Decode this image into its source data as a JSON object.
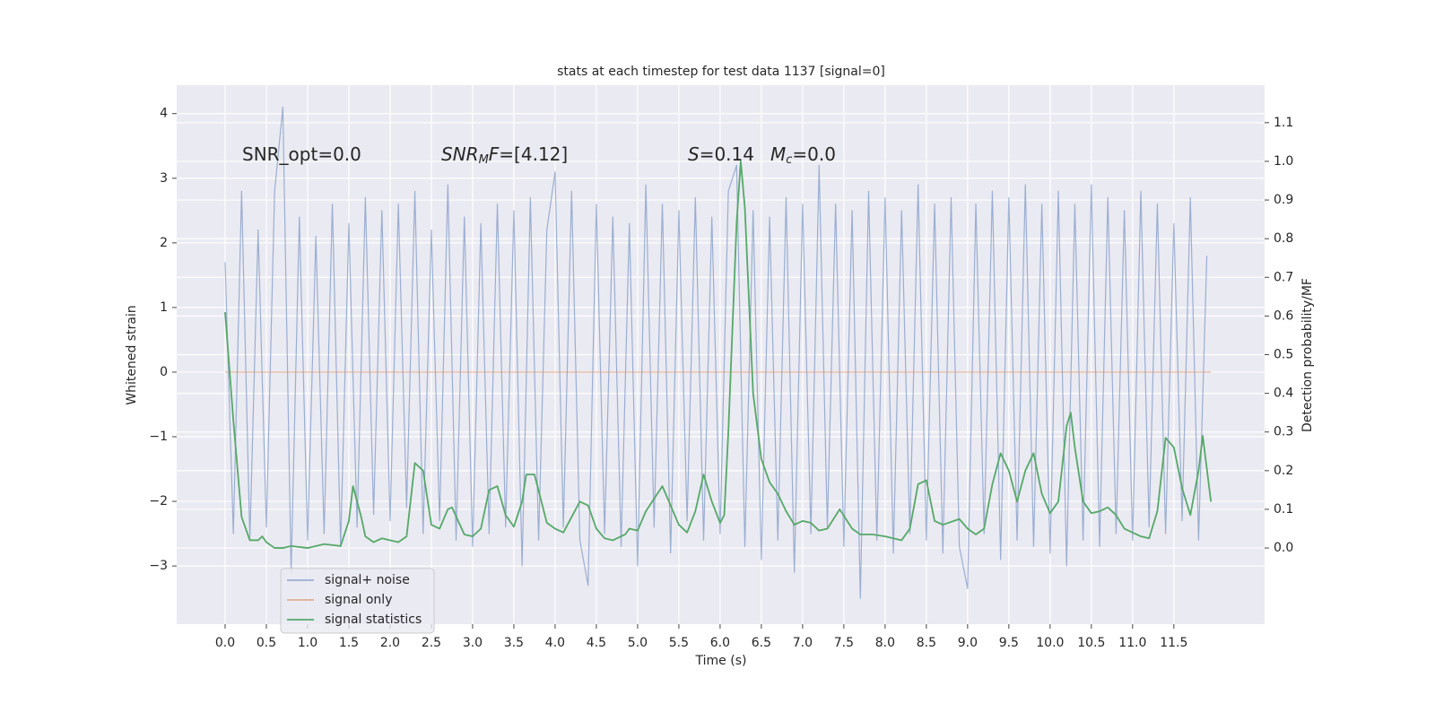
{
  "chart_data": {
    "type": "line",
    "title": "stats at each timestep for test data 1137 [signal=0]",
    "xlabel": "Time (s)",
    "ylabel": "Whitened strain",
    "y2label": "Detection probability/MF",
    "xlim": [
      -0.587,
      12.6
    ],
    "ylim": [
      -3.9,
      4.44
    ],
    "y2lim": [
      -0.197,
      1.197
    ],
    "xticks": [
      {
        "value": 0,
        "label": "0.0"
      },
      0.5,
      {
        "value": 1,
        "label": "1.0"
      },
      1.5,
      {
        "value": 2,
        "label": "2.0"
      },
      2.5,
      {
        "value": 3,
        "label": "3.0"
      },
      3.5,
      {
        "value": 4,
        "label": "4.0"
      },
      4.5,
      {
        "value": 5,
        "label": "5.0"
      },
      5.5,
      {
        "value": 6,
        "label": "6.0"
      },
      6.5,
      {
        "value": 7,
        "label": "7.0"
      },
      7.5,
      {
        "value": 8,
        "label": "8.0"
      },
      8.5,
      {
        "value": 9,
        "label": "9.0"
      },
      9.5,
      {
        "value": 10,
        "label": "10.0"
      },
      10.5,
      {
        "value": 11,
        "label": "11.0"
      },
      11.5
    ],
    "yticks": [
      {
        "value": -3,
        "label": "−3"
      },
      {
        "value": -2,
        "label": "−2"
      },
      {
        "value": -1,
        "label": "−1"
      },
      0,
      1,
      2,
      3,
      4
    ],
    "y2ticks": [
      {
        "value": 0,
        "label": "0.0"
      },
      0.1,
      0.2,
      0.3,
      0.4,
      0.5,
      0.6,
      0.7,
      0.8,
      0.9,
      {
        "value": 1,
        "label": "1.0"
      },
      1.1
    ],
    "grid": true,
    "background": "#eaeaf2",
    "annotations": [
      [
        {
          "text": "SNR_opt=0.0"
        }
      ],
      [
        {
          "text": "SNR",
          "italic": true
        },
        {
          "text": "M",
          "italic": true,
          "sub": true
        },
        {
          "text": "F",
          "italic": true
        },
        {
          "text": "=[4.12]"
        }
      ],
      [
        {
          "text": "S",
          "italic": true
        },
        {
          "text": "=0.14"
        }
      ],
      [
        {
          "text": "M",
          "italic": true
        },
        {
          "text": "c",
          "italic": true,
          "sub": true
        },
        {
          "text": "=0.0"
        }
      ]
    ],
    "series": [
      {
        "name": "signal+ noise",
        "color": "#4c72b0",
        "opacity": 0.5,
        "axis": "y",
        "x": [
          0,
          0.1,
          0.2,
          0.3,
          0.4,
          0.5,
          0.6,
          0.7,
          0.8,
          0.9,
          1,
          1.1,
          1.2,
          1.3,
          1.4,
          1.5,
          1.6,
          1.7,
          1.8,
          1.9,
          2,
          2.1,
          2.2,
          2.3,
          2.4,
          2.5,
          2.6,
          2.7,
          2.8,
          2.9,
          3,
          3.1,
          3.2,
          3.3,
          3.4,
          3.5,
          3.6,
          3.7,
          3.8,
          3.9,
          4,
          4.1,
          4.2,
          4.3,
          4.4,
          4.5,
          4.6,
          4.7,
          4.8,
          4.9,
          5,
          5.1,
          5.2,
          5.3,
          5.4,
          5.5,
          5.6,
          5.7,
          5.8,
          5.9,
          6,
          6.1,
          6.2,
          6.3,
          6.4,
          6.5,
          6.6,
          6.7,
          6.8,
          6.9,
          7,
          7.1,
          7.2,
          7.3,
          7.4,
          7.5,
          7.6,
          7.7,
          7.8,
          7.9,
          8,
          8.1,
          8.2,
          8.3,
          8.4,
          8.5,
          8.6,
          8.7,
          8.8,
          8.9,
          9,
          9.1,
          9.2,
          9.3,
          9.4,
          9.5,
          9.6,
          9.7,
          9.8,
          9.9,
          10,
          10.1,
          10.2,
          10.3,
          10.4,
          10.5,
          10.6,
          10.7,
          10.8,
          10.9,
          11,
          11.1,
          11.2,
          11.3,
          11.4,
          11.5,
          11.6,
          11.7,
          11.8,
          11.9
        ],
        "values": [
          1.7,
          -2.5,
          2.8,
          -2.6,
          2.2,
          -2.4,
          2.8,
          4.1,
          -3.1,
          2.4,
          -2.6,
          2.1,
          -2.5,
          2.6,
          -2.7,
          2.3,
          -2.4,
          2.7,
          -2.2,
          2.5,
          -2.3,
          2.6,
          -2.1,
          2.8,
          -2.5,
          2.2,
          -2.3,
          2.9,
          -2.6,
          2.4,
          -2.7,
          2.3,
          -2.5,
          2.6,
          -2.4,
          2.5,
          -3.0,
          2.7,
          -2.6,
          2.2,
          3.1,
          -2.4,
          2.8,
          -2.6,
          -3.3,
          2.6,
          -2.5,
          2.4,
          -2.7,
          2.3,
          -3.0,
          2.9,
          -2.4,
          2.6,
          -2.8,
          2.5,
          -2.3,
          2.7,
          -2.6,
          2.4,
          -2.5,
          2.8,
          3.2,
          -2.7,
          2.5,
          -2.9,
          2.4,
          -2.6,
          2.7,
          -3.1,
          2.6,
          -2.5,
          3.2,
          -2.4,
          2.6,
          -2.7,
          2.5,
          -3.5,
          2.8,
          -2.6,
          2.7,
          -2.8,
          2.5,
          -2.5,
          2.9,
          -2.6,
          2.6,
          -2.8,
          2.7,
          -2.7,
          -3.35,
          2.6,
          -2.5,
          2.8,
          -2.9,
          2.7,
          -2.6,
          2.9,
          -2.7,
          2.6,
          -2.8,
          2.8,
          -3.0,
          2.6,
          -2.6,
          2.9,
          -2.7,
          2.7,
          -2.5,
          2.5,
          -2.6,
          2.8,
          -2.4,
          2.6,
          -2.5,
          2.3,
          -2.3,
          2.7,
          -2.6,
          1.8
        ]
      },
      {
        "name": "signal only",
        "color": "#dd8452",
        "opacity": 0.6,
        "axis": "y",
        "x": [
          0,
          11.95
        ],
        "values": [
          0,
          0
        ]
      },
      {
        "name": "signal statistics",
        "color": "#55a868",
        "opacity": 1,
        "axis": "y2",
        "x": [
          0,
          0.1,
          0.2,
          0.3,
          0.4,
          0.45,
          0.5,
          0.6,
          0.7,
          0.8,
          1.0,
          1.2,
          1.4,
          1.5,
          1.55,
          1.65,
          1.7,
          1.8,
          1.9,
          2.0,
          2.1,
          2.2,
          2.3,
          2.4,
          2.5,
          2.6,
          2.7,
          2.75,
          2.9,
          3.0,
          3.1,
          3.2,
          3.3,
          3.4,
          3.5,
          3.6,
          3.65,
          3.75,
          3.9,
          4.0,
          4.1,
          4.3,
          4.4,
          4.5,
          4.6,
          4.7,
          4.85,
          4.9,
          5.0,
          5.1,
          5.3,
          5.5,
          5.6,
          5.7,
          5.8,
          5.9,
          6.0,
          6.05,
          6.1,
          6.2,
          6.25,
          6.3,
          6.4,
          6.5,
          6.6,
          6.7,
          6.8,
          6.9,
          7.0,
          7.1,
          7.2,
          7.3,
          7.45,
          7.6,
          7.7,
          7.85,
          8.0,
          8.2,
          8.3,
          8.4,
          8.5,
          8.6,
          8.7,
          8.9,
          9.0,
          9.1,
          9.2,
          9.3,
          9.4,
          9.5,
          9.6,
          9.7,
          9.8,
          9.9,
          10.0,
          10.1,
          10.2,
          10.25,
          10.3,
          10.4,
          10.5,
          10.6,
          10.7,
          10.8,
          10.9,
          11.1,
          11.2,
          11.3,
          11.4,
          11.5,
          11.6,
          11.7,
          11.8,
          11.85,
          11.95
        ],
        "values": [
          0.61,
          0.33,
          0.08,
          0.02,
          0.02,
          0.03,
          0.015,
          0.0,
          0.0,
          0.005,
          0.0,
          0.01,
          0.005,
          0.07,
          0.16,
          0.08,
          0.03,
          0.015,
          0.025,
          0.02,
          0.015,
          0.03,
          0.22,
          0.2,
          0.06,
          0.05,
          0.1,
          0.105,
          0.035,
          0.03,
          0.05,
          0.15,
          0.16,
          0.085,
          0.055,
          0.12,
          0.19,
          0.19,
          0.065,
          0.05,
          0.04,
          0.12,
          0.11,
          0.05,
          0.025,
          0.02,
          0.035,
          0.05,
          0.045,
          0.095,
          0.16,
          0.06,
          0.04,
          0.095,
          0.19,
          0.12,
          0.065,
          0.085,
          0.3,
          0.84,
          1.0,
          0.88,
          0.4,
          0.23,
          0.17,
          0.14,
          0.095,
          0.06,
          0.07,
          0.065,
          0.045,
          0.05,
          0.1,
          0.05,
          0.035,
          0.035,
          0.03,
          0.02,
          0.05,
          0.165,
          0.175,
          0.07,
          0.06,
          0.075,
          0.05,
          0.035,
          0.05,
          0.165,
          0.245,
          0.2,
          0.12,
          0.2,
          0.245,
          0.14,
          0.09,
          0.12,
          0.315,
          0.35,
          0.26,
          0.12,
          0.09,
          0.095,
          0.105,
          0.085,
          0.05,
          0.03,
          0.025,
          0.095,
          0.285,
          0.26,
          0.155,
          0.085,
          0.2,
          0.29,
          0.12
        ]
      }
    ]
  }
}
